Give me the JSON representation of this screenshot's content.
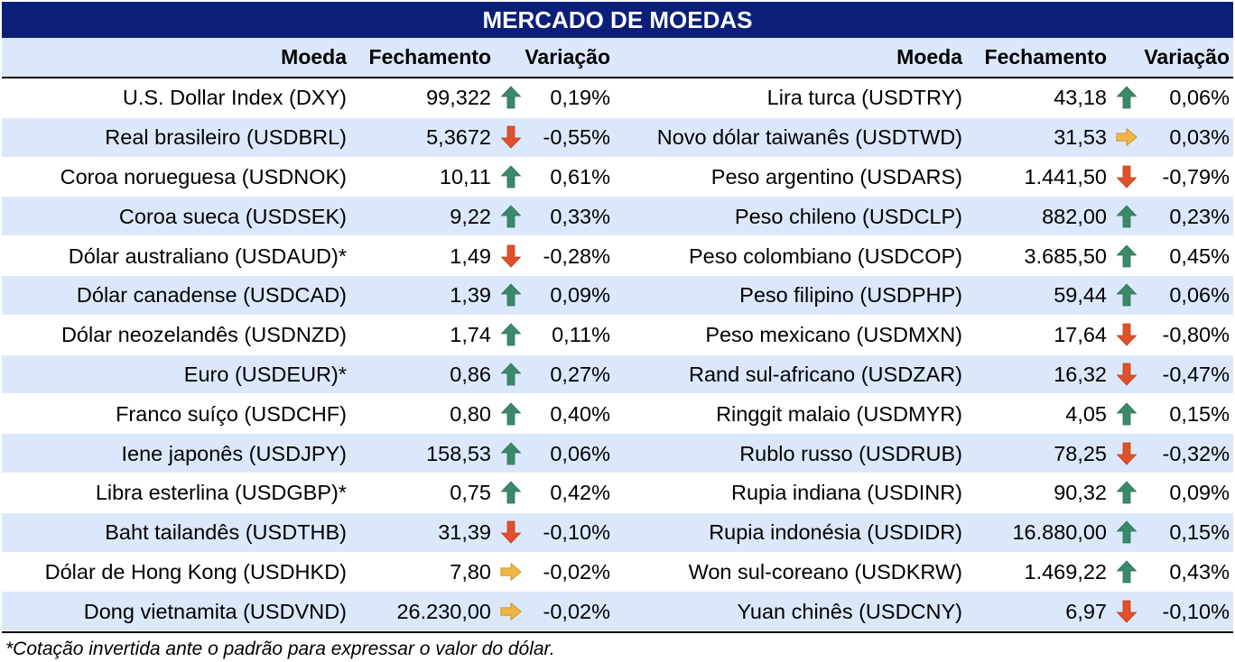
{
  "title": "MERCADO DE MOEDAS",
  "headers": {
    "currency": "Moeda",
    "close": "Fechamento",
    "change": "Variação"
  },
  "left_rows": [
    {
      "name": "U.S. Dollar Index (DXY)",
      "close": "99,322",
      "trend": "up",
      "change": "0,19%"
    },
    {
      "name": "Real brasileiro (USDBRL)",
      "close": "5,3672",
      "trend": "down",
      "change": "-0,55%"
    },
    {
      "name": "Coroa norueguesa (USDNOK)",
      "close": "10,11",
      "trend": "up",
      "change": "0,61%"
    },
    {
      "name": "Coroa sueca (USDSEK)",
      "close": "9,22",
      "trend": "up",
      "change": "0,33%"
    },
    {
      "name": "Dólar australiano (USDAUD)*",
      "close": "1,49",
      "trend": "down",
      "change": "-0,28%"
    },
    {
      "name": "Dólar canadense (USDCAD)",
      "close": "1,39",
      "trend": "up",
      "change": "0,09%"
    },
    {
      "name": "Dólar neozelandês (USDNZD)",
      "close": "1,74",
      "trend": "up",
      "change": "0,11%"
    },
    {
      "name": "Euro (USDEUR)*",
      "close": "0,86",
      "trend": "up",
      "change": "0,27%"
    },
    {
      "name": "Franco suíço (USDCHF)",
      "close": "0,80",
      "trend": "up",
      "change": "0,40%"
    },
    {
      "name": "Iene japonês (USDJPY)",
      "close": "158,53",
      "trend": "up",
      "change": "0,06%"
    },
    {
      "name": "Libra esterlina (USDGBP)*",
      "close": "0,75",
      "trend": "up",
      "change": "0,42%"
    },
    {
      "name": "Baht tailandês (USDTHB)",
      "close": "31,39",
      "trend": "down",
      "change": "-0,10%"
    },
    {
      "name": "Dólar de Hong Kong (USDHKD)",
      "close": "7,80",
      "trend": "flat",
      "change": "-0,02%"
    },
    {
      "name": "Dong vietnamita (USDVND)",
      "close": "26.230,00",
      "trend": "flat",
      "change": "-0,02%"
    }
  ],
  "right_rows": [
    {
      "name": "Lira turca (USDTRY)",
      "close": "43,18",
      "trend": "up",
      "change": "0,06%"
    },
    {
      "name": "Novo dólar taiwanês (USDTWD)",
      "close": "31,53",
      "trend": "flat",
      "change": "0,03%"
    },
    {
      "name": "Peso argentino (USDARS)",
      "close": "1.441,50",
      "trend": "down",
      "change": "-0,79%"
    },
    {
      "name": "Peso chileno (USDCLP)",
      "close": "882,00",
      "trend": "up",
      "change": "0,23%"
    },
    {
      "name": "Peso colombiano (USDCOP)",
      "close": "3.685,50",
      "trend": "up",
      "change": "0,45%"
    },
    {
      "name": "Peso filipino (USDPHP)",
      "close": "59,44",
      "trend": "up",
      "change": "0,06%"
    },
    {
      "name": "Peso mexicano (USDMXN)",
      "close": "17,64",
      "trend": "down",
      "change": "-0,80%"
    },
    {
      "name": "Rand sul-africano (USDZAR)",
      "close": "16,32",
      "trend": "down",
      "change": "-0,47%"
    },
    {
      "name": "Ringgit malaio (USDMYR)",
      "close": "4,05",
      "trend": "up",
      "change": "0,15%"
    },
    {
      "name": "Rublo russo (USDRUB)",
      "close": "78,25",
      "trend": "down",
      "change": "-0,32%"
    },
    {
      "name": "Rupia indiana (USDINR)",
      "close": "90,32",
      "trend": "up",
      "change": "0,09%"
    },
    {
      "name": "Rupia indonésia (USDIDR)",
      "close": "16.880,00",
      "trend": "up",
      "change": "0,15%"
    },
    {
      "name": "Won sul-coreano (USDKRW)",
      "close": "1.469,22",
      "trend": "up",
      "change": "0,43%"
    },
    {
      "name": "Yuan chinês (USDCNY)",
      "close": "6,97",
      "trend": "down",
      "change": "-0,10%"
    }
  ],
  "icons": {
    "up": "arrow-up-icon",
    "down": "arrow-down-icon",
    "flat": "arrow-right-icon"
  },
  "colors": {
    "header_bg": "#0b1f78",
    "band_bg": "#dbe8fb",
    "up": "#3a8a6a",
    "down": "#e0502a",
    "flat": "#f0b545"
  },
  "footnote": "*Cotação invertida ante o padrão para expressar o valor do dólar."
}
